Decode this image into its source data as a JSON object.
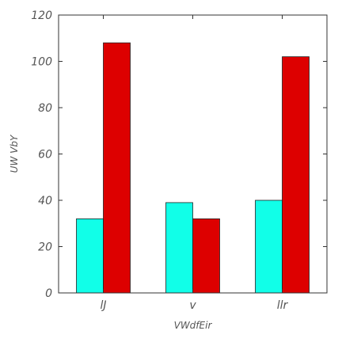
{
  "chart_data": {
    "type": "bar",
    "title": "",
    "xlabel": "VWdfEir",
    "ylabel": "UW VbY",
    "categories": [
      "lJ",
      "v",
      "llr"
    ],
    "series": [
      {
        "values": [
          32,
          39,
          40
        ],
        "color": "#11ffe8"
      },
      {
        "values": [
          108,
          32,
          102
        ],
        "color": "#dd0000"
      }
    ],
    "ylim": [
      0,
      120
    ],
    "yticks": [
      "0",
      "20",
      "40",
      "60",
      "80",
      "100",
      "120"
    ],
    "grid": false,
    "legend": "none"
  }
}
